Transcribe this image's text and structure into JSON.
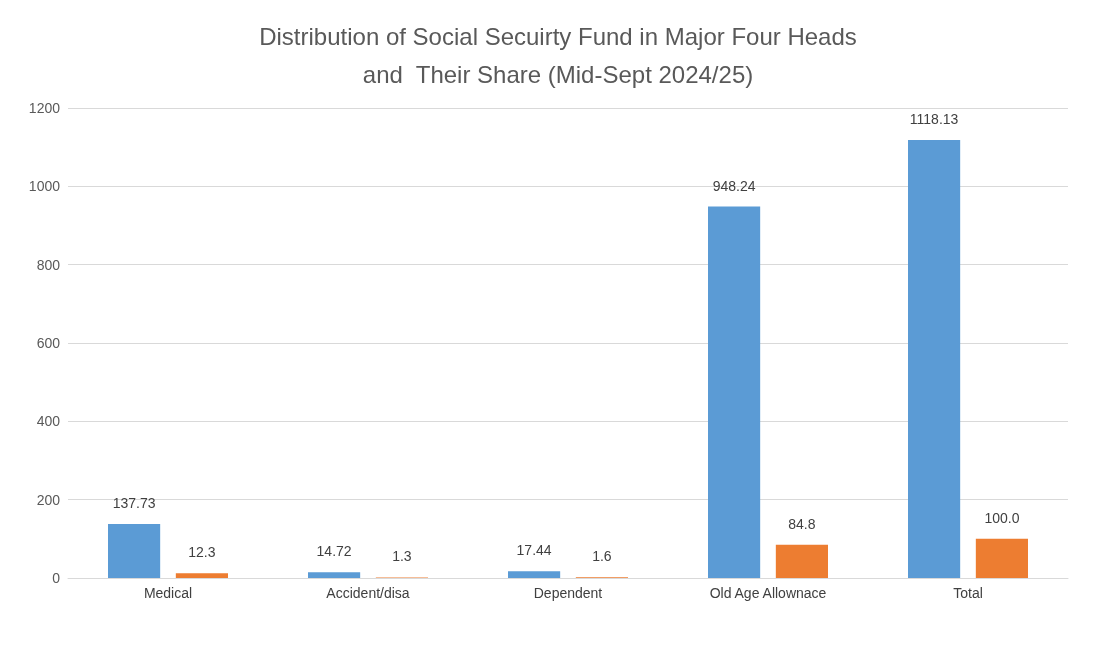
{
  "chart_data": {
    "type": "bar",
    "title": "Distribution of Social Secuirty Fund in Major Four Heads\nand  Their Share (Mid-Sept 2024/25)",
    "categories": [
      "Medical",
      "Accident/disa",
      "Dependent",
      "Old Age Allownace",
      "Total"
    ],
    "series": [
      {
        "color": "#5b9bd5",
        "values": [
          137.73,
          14.72,
          17.44,
          948.24,
          1118.13
        ],
        "value_labels": [
          "137.73",
          "14.72",
          "17.44",
          "948.24",
          "1118.13"
        ]
      },
      {
        "color": "#ed7d31",
        "values": [
          12.3,
          1.3,
          1.6,
          84.8,
          100.0
        ],
        "value_labels": [
          "12.3",
          "1.3",
          "1.6",
          "84.8",
          "100.0"
        ]
      }
    ],
    "ylim": [
      0,
      1200
    ],
    "yticks": [
      0,
      200,
      400,
      600,
      800,
      1000,
      1200
    ],
    "grid": "y"
  }
}
